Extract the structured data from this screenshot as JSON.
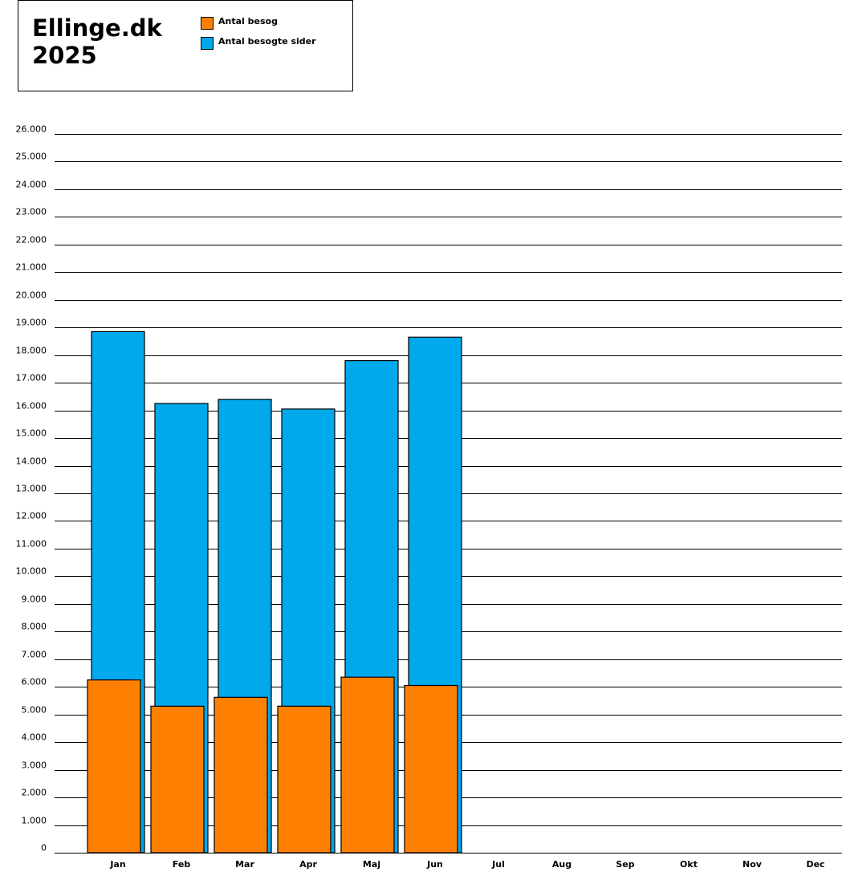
{
  "title": {
    "line1": "Ellinge.dk",
    "line2": "2025"
  },
  "colors": {
    "visits": "#ff8000",
    "pages": "#00a8ec",
    "grid": "#000000"
  },
  "chart_data": {
    "type": "bar",
    "categories": [
      "Jan",
      "Feb",
      "Mar",
      "Apr",
      "Maj",
      "Jun",
      "Jul",
      "Aug",
      "Sep",
      "Okt",
      "Nov",
      "Dec"
    ],
    "series": [
      {
        "name": "Antal besog",
        "values": [
          6250,
          5300,
          5620,
          5300,
          6350,
          6050,
          null,
          null,
          null,
          null,
          null,
          null
        ]
      },
      {
        "name": "Antal besogte sider",
        "values": [
          18850,
          16250,
          16400,
          16050,
          17800,
          18650,
          null,
          null,
          null,
          null,
          null,
          null
        ]
      }
    ],
    "yticks": [
      "0",
      "1.000",
      "2.000",
      "3.000",
      "4.000",
      "5.000",
      "6.000",
      "7.000",
      "8.000",
      "9.000",
      "10.000",
      "11.000",
      "12.000",
      "13.000",
      "14.000",
      "15.000",
      "16.000",
      "17.000",
      "18.000",
      "19.000",
      "20.000",
      "21.000",
      "22.000",
      "23.000",
      "24.000",
      "25.000",
      "26.000"
    ],
    "ylim": [
      0,
      26000
    ],
    "grid": true,
    "legend_position": "top-left"
  }
}
